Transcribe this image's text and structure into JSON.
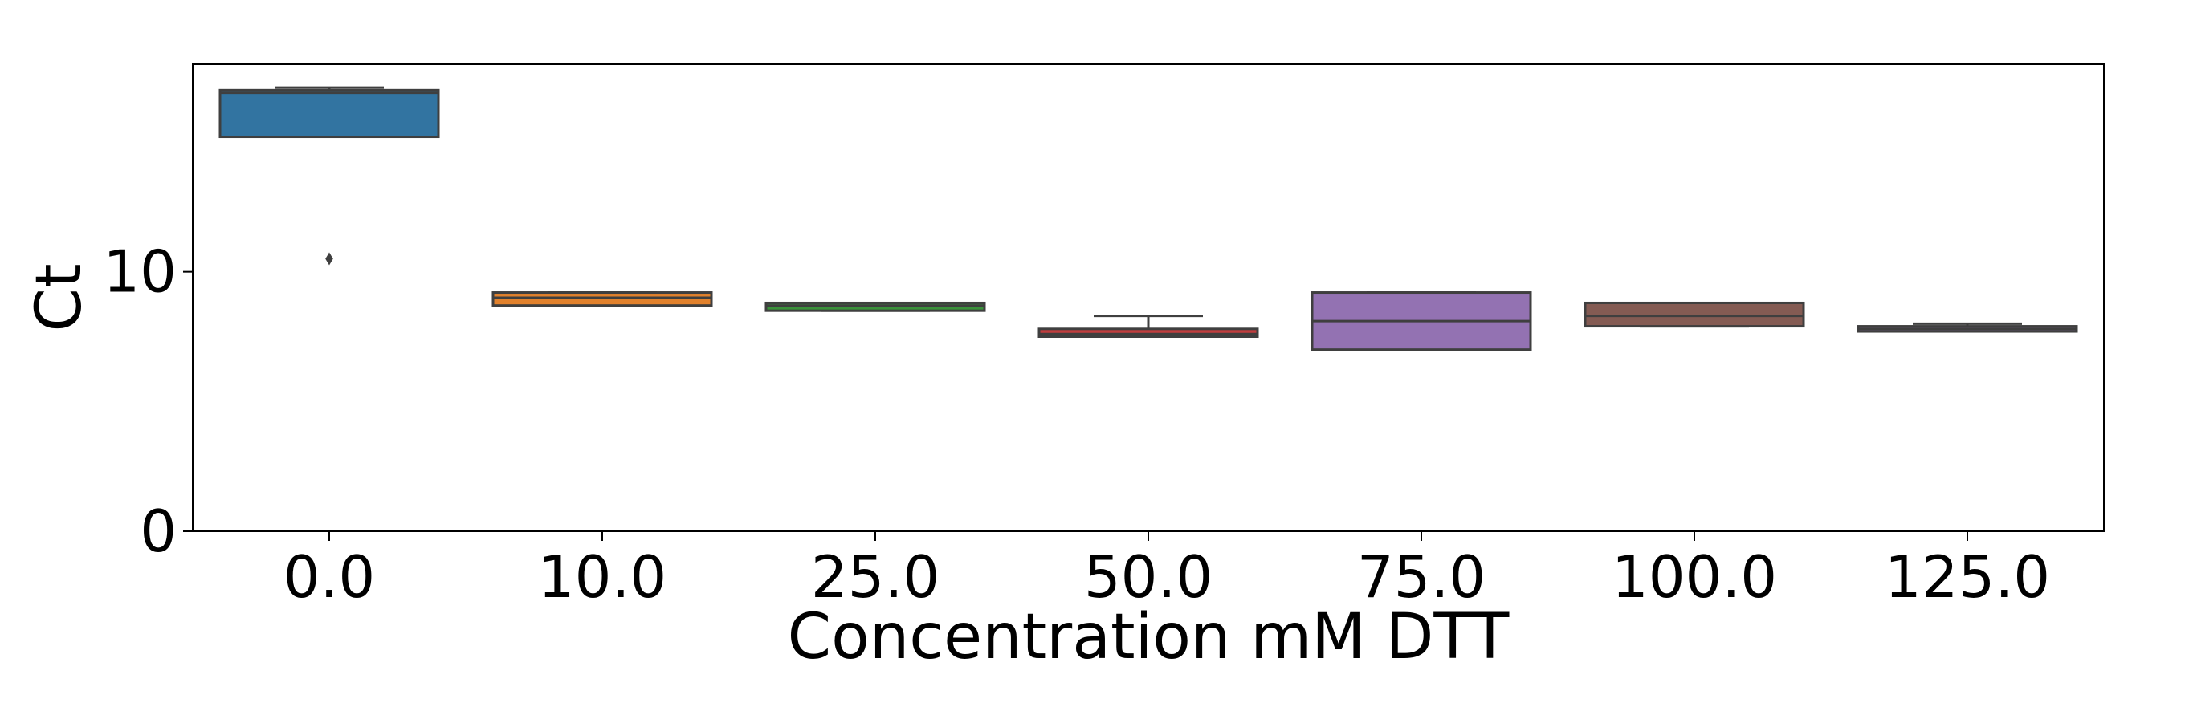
{
  "chart_data": {
    "type": "box",
    "xlabel": "Concentration mM DTT",
    "ylabel": "Ct",
    "ylim": [
      0,
      18
    ],
    "yticks": [
      0,
      10
    ],
    "categories": [
      "0.0",
      "10.0",
      "25.0",
      "50.0",
      "75.0",
      "100.0",
      "125.0"
    ],
    "boxes": [
      {
        "category": "0.0",
        "whisker_low": 15.2,
        "q1": 15.2,
        "median": 16.9,
        "q3": 17.0,
        "whisker_high": 17.1,
        "outliers": [
          10.5
        ],
        "color": "#3274a1"
      },
      {
        "category": "10.0",
        "whisker_low": 8.7,
        "q1": 8.7,
        "median": 9.0,
        "q3": 9.2,
        "whisker_high": 9.2,
        "outliers": [],
        "color": "#e1812c"
      },
      {
        "category": "25.0",
        "whisker_low": 8.5,
        "q1": 8.5,
        "median": 8.7,
        "q3": 8.8,
        "whisker_high": 8.8,
        "outliers": [],
        "color": "#3a923a"
      },
      {
        "category": "50.0",
        "whisker_low": 7.5,
        "q1": 7.5,
        "median": 7.6,
        "q3": 7.8,
        "whisker_high": 8.3,
        "outliers": [],
        "color": "#c03d3e"
      },
      {
        "category": "75.0",
        "whisker_low": 7.0,
        "q1": 7.0,
        "median": 8.1,
        "q3": 9.2,
        "whisker_high": 9.2,
        "outliers": [],
        "color": "#9372b2"
      },
      {
        "category": "100.0",
        "whisker_low": 7.9,
        "q1": 7.9,
        "median": 8.3,
        "q3": 8.8,
        "whisker_high": 8.8,
        "outliers": [],
        "color": "#845b53"
      },
      {
        "category": "125.0",
        "whisker_low": 7.7,
        "q1": 7.7,
        "median": 7.8,
        "q3": 7.9,
        "whisker_high": 8.0,
        "outliers": [],
        "color": "#6b5a7a"
      }
    ]
  }
}
